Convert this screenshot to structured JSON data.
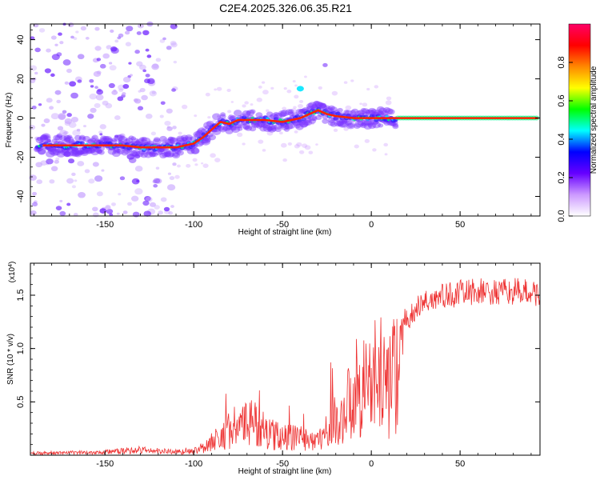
{
  "title": "C2E4.2025.326.06.35.R21",
  "chart_data": [
    {
      "type": "heatmap",
      "name": "spectrogram",
      "xlabel": "Height of straight line (km)",
      "ylabel": "Frequency (Hz)",
      "xlim": [
        -192,
        95
      ],
      "ylim": [
        -50,
        48
      ],
      "xticks": [
        -150,
        -100,
        -50,
        0,
        50
      ],
      "yticks": [
        -40,
        -20,
        0,
        20,
        40
      ],
      "ridge": {
        "x": [
          -185,
          -170,
          -160,
          -150,
          -140,
          -130,
          -120,
          -110,
          -100,
          -95,
          -90,
          -85,
          -80,
          -75,
          -70,
          -60,
          -50,
          -40,
          -30,
          -25,
          -20,
          -10,
          0,
          10,
          15,
          94
        ],
        "y": [
          -14,
          -14,
          -14,
          -14,
          -14,
          -15,
          -15,
          -15,
          -13,
          -10,
          -6,
          -2,
          -3,
          -1,
          -1,
          -1,
          -2,
          0,
          4,
          2,
          1,
          0,
          0,
          0,
          0,
          0
        ]
      },
      "colorbar": {
        "label": "Normalized spectral amplitude",
        "range": [
          0,
          1
        ],
        "ticks": [
          0.0,
          0.2,
          0.4,
          0.6,
          0.8
        ],
        "tick_labels": [
          "0.0",
          "0.2",
          "0.4",
          "0.6",
          "0.8"
        ],
        "colors": [
          "#ffffff",
          "#cc99ff",
          "#6600ff",
          "#0000ff",
          "#00ffff",
          "#00ff00",
          "#ffff00",
          "#ff8800",
          "#ff0000",
          "#ff0066"
        ]
      }
    },
    {
      "type": "line",
      "name": "snr",
      "xlabel": "Height of straight line (km)",
      "ylabel": "SNR (10 * v/v)",
      "scale_label": "(x10",
      "scale_exp": "4",
      "xlim": [
        -192,
        95
      ],
      "ylim": [
        0,
        1.8
      ],
      "xticks": [
        -150,
        -100,
        -50,
        0,
        50
      ],
      "yticks": [
        0.5,
        1.0,
        1.5
      ],
      "ytick_labels": [
        "0.5",
        "1.0",
        "1.5"
      ],
      "color": "#ee3333",
      "envelope": {
        "x": [
          -192,
          -160,
          -140,
          -130,
          -120,
          -105,
          -100,
          -95,
          -85,
          -78,
          -70,
          -65,
          -60,
          -55,
          -45,
          -35,
          -28,
          -24,
          -22,
          -20,
          -17,
          -12,
          -8,
          -2,
          2,
          6,
          10,
          13,
          17,
          22,
          25,
          30,
          40,
          50,
          60,
          70,
          80,
          95
        ],
        "y": [
          0.03,
          0.04,
          0.06,
          0.08,
          0.06,
          0.05,
          0.06,
          0.12,
          0.28,
          0.42,
          0.45,
          0.5,
          0.35,
          0.3,
          0.27,
          0.25,
          0.23,
          0.22,
          0.85,
          0.4,
          0.55,
          0.85,
          1.05,
          1.1,
          1.15,
          1.25,
          1.0,
          1.28,
          1.3,
          1.35,
          1.42,
          1.5,
          1.55,
          1.58,
          1.6,
          1.58,
          1.6,
          1.58
        ]
      }
    }
  ]
}
